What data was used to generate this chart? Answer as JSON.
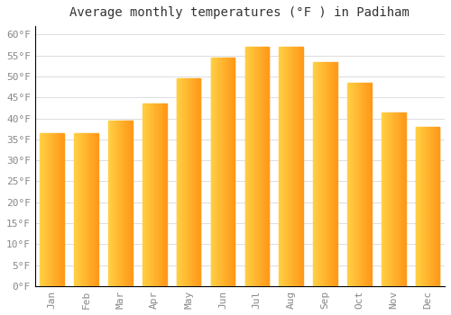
{
  "title": "Average monthly temperatures (°F ) in Padiham",
  "months": [
    "Jan",
    "Feb",
    "Mar",
    "Apr",
    "May",
    "Jun",
    "Jul",
    "Aug",
    "Sep",
    "Oct",
    "Nov",
    "Dec"
  ],
  "values": [
    36.5,
    36.5,
    39.5,
    43.5,
    49.5,
    54.5,
    57.0,
    57.0,
    53.5,
    48.5,
    41.5,
    38.0
  ],
  "bar_color_left": "#FFCC44",
  "bar_color_right": "#FFA500",
  "background_color": "#FFFFFF",
  "grid_color": "#DDDDDD",
  "ylim": [
    0,
    62
  ],
  "yticks": [
    0,
    5,
    10,
    15,
    20,
    25,
    30,
    35,
    40,
    45,
    50,
    55,
    60
  ],
  "title_fontsize": 10,
  "tick_fontsize": 8,
  "tick_label_color": "#888888",
  "spine_color": "#000000"
}
